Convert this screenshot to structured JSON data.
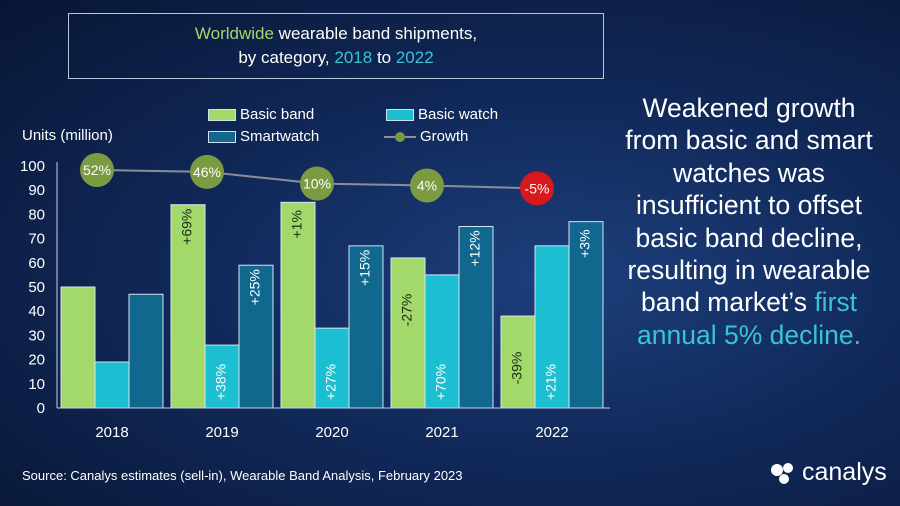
{
  "title": {
    "part1": "Worldwide",
    "part2": " wearable band shipments,",
    "part3": "by category, ",
    "part4": "2018",
    "part5": " to ",
    "part6": "2022"
  },
  "side_text": {
    "lines_white": "Weakened growth from basic and smart watches was insufficient to offset basic band decline, resulting in wearable band market’s ",
    "lines_cyan": "first annual 5% decline."
  },
  "source": "Source:  Canalys estimates (sell-in), Wearable Band Analysis, February 2023",
  "brand": "canalys",
  "colors": {
    "basic_band": "#a3d96a",
    "basic_watch": "#1cbfd1",
    "smartwatch": "#11688f",
    "growth_positive": "#7b9b42",
    "growth_negative": "#d7181d",
    "growth_line": "#8a8f96",
    "accent_cyan": "#39c4d6",
    "accent_green": "#a5d56a"
  },
  "chart_data": {
    "type": "bar",
    "ylabel": "Units (million)",
    "ylim": [
      0,
      100
    ],
    "yticks": [
      0,
      10,
      20,
      30,
      40,
      50,
      60,
      70,
      80,
      90,
      100
    ],
    "categories": [
      "2018",
      "2019",
      "2020",
      "2021",
      "2022"
    ],
    "series": [
      {
        "name": "Basic band",
        "values": [
          50,
          84,
          85,
          62,
          38
        ],
        "labels": [
          "",
          "+69%",
          "+1%",
          "-27%",
          "-39%"
        ]
      },
      {
        "name": "Basic watch",
        "values": [
          19,
          26,
          33,
          55,
          67
        ],
        "labels": [
          "",
          "+38%",
          "+27%",
          "+70%",
          "+21%"
        ]
      },
      {
        "name": "Smartwatch",
        "values": [
          47,
          59,
          67,
          75,
          77
        ],
        "labels": [
          "",
          "+25%",
          "+15%",
          "+12%",
          "+3%"
        ]
      }
    ],
    "growth": {
      "name": "Growth",
      "values": [
        52,
        46,
        10,
        4,
        -5
      ],
      "labels": [
        "52%",
        "46%",
        "10%",
        "4%",
        "-5%"
      ]
    },
    "legend_placement": "top"
  }
}
